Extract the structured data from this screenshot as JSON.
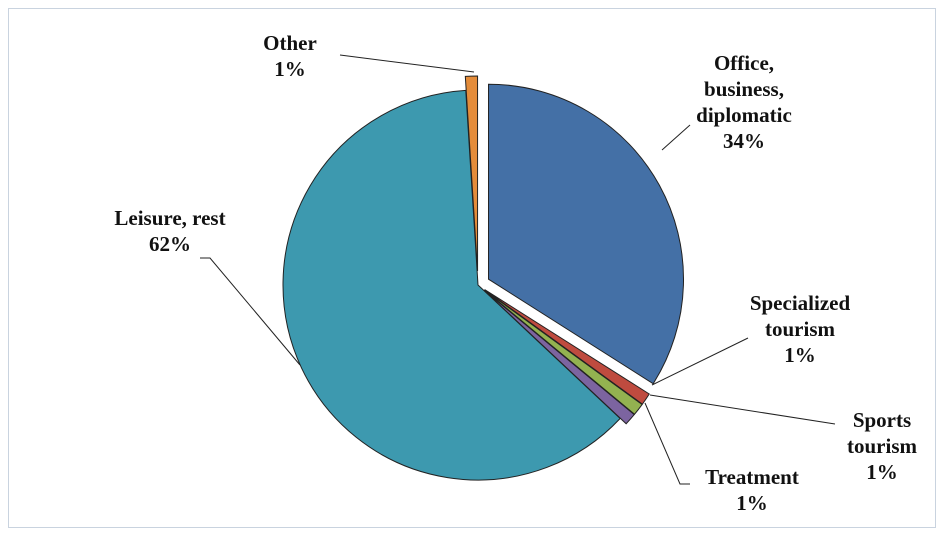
{
  "chart_data": {
    "type": "pie",
    "title": "",
    "slices": [
      {
        "label_lines": [
          "Office,",
          "business,",
          "diplomatic"
        ],
        "percent_label": "34%",
        "value": 34,
        "color": "#4470A6"
      },
      {
        "label_lines": [
          "Specialized",
          "tourism"
        ],
        "percent_label": "1%",
        "value": 1,
        "color": "#BF4B3F"
      },
      {
        "label_lines": [
          "Sports",
          "tourism"
        ],
        "percent_label": "1%",
        "value": 1,
        "color": "#93B250"
      },
      {
        "label_lines": [
          "Treatment"
        ],
        "percent_label": "1%",
        "value": 1,
        "color": "#7C64A0"
      },
      {
        "label_lines": [
          "Leisure, rest"
        ],
        "percent_label": "62%",
        "value": 62,
        "color": "#3D99AF"
      },
      {
        "label_lines": [
          "Other"
        ],
        "percent_label": "1%",
        "value": 1,
        "color": "#E48C3A"
      }
    ],
    "legend": "none",
    "grid": false
  }
}
